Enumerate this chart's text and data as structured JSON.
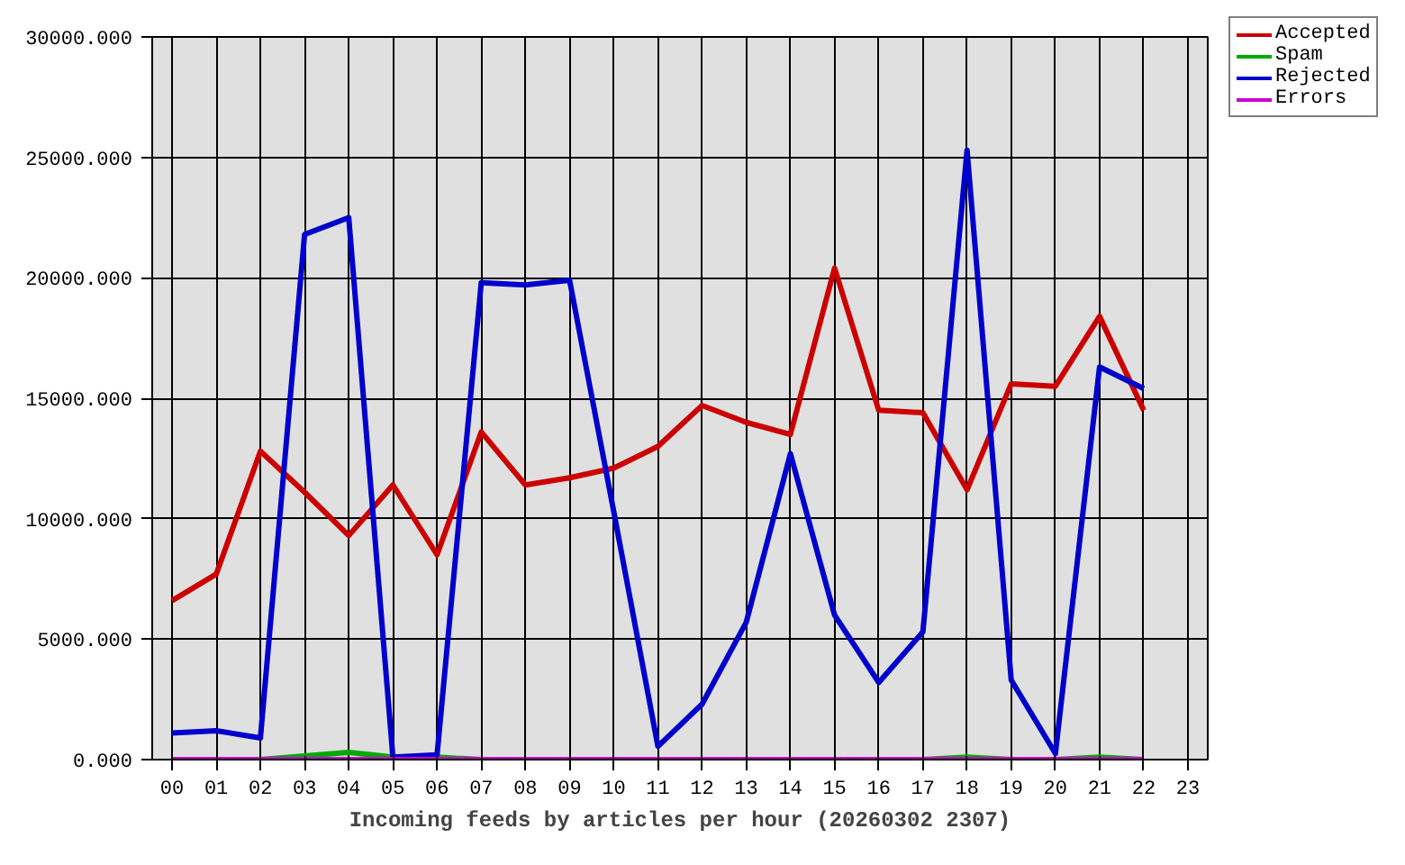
{
  "chart_data": {
    "type": "line",
    "xlabel": "Incoming feeds by articles per hour (20260302 2307)",
    "categories": [
      "00",
      "01",
      "02",
      "03",
      "04",
      "05",
      "06",
      "07",
      "08",
      "09",
      "10",
      "11",
      "12",
      "13",
      "14",
      "15",
      "16",
      "17",
      "18",
      "19",
      "20",
      "21",
      "22",
      "23"
    ],
    "ylim": [
      0,
      30000
    ],
    "yticks": [
      {
        "value": 0,
        "label": "0.000"
      },
      {
        "value": 5000,
        "label": "5000.000"
      },
      {
        "value": 10000,
        "label": "10000.000"
      },
      {
        "value": 15000,
        "label": "15000.000"
      },
      {
        "value": 20000,
        "label": "20000.000"
      },
      {
        "value": 25000,
        "label": "25000.000"
      },
      {
        "value": 30000,
        "label": "30000.000"
      }
    ],
    "grid": true,
    "legend": "top right",
    "series": [
      {
        "name": "Accepted",
        "color": "#cc0000",
        "values": [
          6600,
          7700,
          12800,
          11100,
          9300,
          11400,
          8500,
          13600,
          11400,
          11700,
          12100,
          13000,
          14700,
          14000,
          13500,
          20400,
          14500,
          14400,
          11200,
          15600,
          15500,
          18400,
          14500,
          null
        ]
      },
      {
        "name": "Spam",
        "color": "#00aa00",
        "values": [
          null,
          null,
          0,
          150,
          300,
          100,
          100,
          0,
          null,
          null,
          null,
          null,
          null,
          null,
          null,
          null,
          null,
          0,
          100,
          0,
          0,
          100,
          0,
          null
        ]
      },
      {
        "name": "Rejected",
        "color": "#0000cc",
        "values": [
          1100,
          1200,
          900,
          21800,
          22500,
          100,
          200,
          19800,
          19700,
          19900,
          10300,
          550,
          2300,
          5700,
          12700,
          6000,
          3200,
          5300,
          25300,
          3300,
          250,
          16300,
          15400,
          null
        ]
      },
      {
        "name": "Errors",
        "color": "#cc00cc",
        "values": [
          0,
          0,
          0,
          0,
          0,
          0,
          0,
          0,
          0,
          0,
          0,
          0,
          0,
          0,
          0,
          0,
          0,
          0,
          0,
          0,
          0,
          0,
          0,
          null
        ]
      }
    ]
  }
}
